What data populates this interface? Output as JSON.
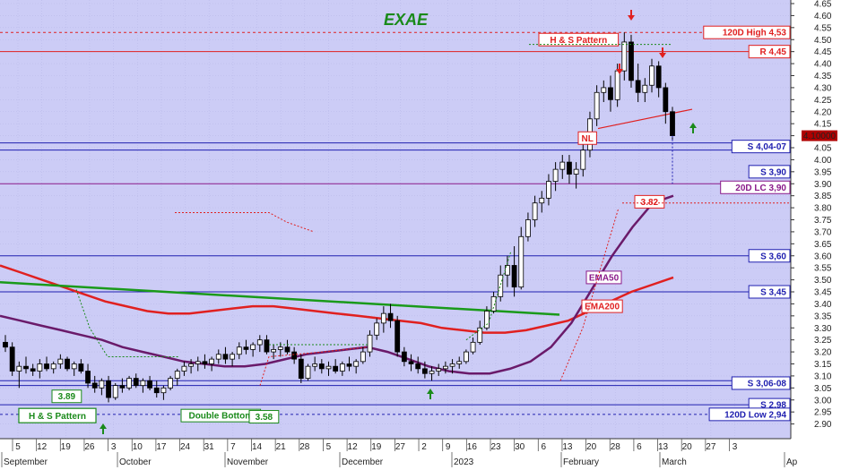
{
  "chart_data": {
    "type": "candlestick",
    "title": "EXAE",
    "ylim": [
      2.85,
      4.65
    ],
    "yticks": [
      2.9,
      2.95,
      3.0,
      3.05,
      3.1,
      3.15,
      3.2,
      3.25,
      3.3,
      3.35,
      3.4,
      3.45,
      3.5,
      3.55,
      3.6,
      3.65,
      3.7,
      3.75,
      3.8,
      3.85,
      3.9,
      3.95,
      4.0,
      4.05,
      4.1,
      4.15,
      4.2,
      4.25,
      4.3,
      4.35,
      4.4,
      4.45,
      4.5,
      4.55,
      4.6,
      4.65
    ],
    "ytick_labels": [
      "2.90",
      "2.95",
      "3.00",
      "3.05",
      "3.10",
      "3.15",
      "3.20",
      "3.25",
      "3.30",
      "3.35",
      "3.40",
      "3.45",
      "3.50",
      "3.55",
      "3.60",
      "3.65",
      "3.70",
      "3.75",
      "3.80",
      "3.85",
      "3.90",
      "3.95",
      "4.00",
      "4.05",
      "4.10",
      "4.15",
      "4.20",
      "4.25",
      "4.30",
      "4.35",
      "4.40",
      "4.45",
      "4.50",
      "4.55",
      "4.60",
      "4.65"
    ],
    "x_ticks": [
      "5",
      "12",
      "19",
      "26",
      "3",
      "10",
      "17",
      "24",
      "31",
      "7",
      "14",
      "21",
      "28",
      "5",
      "12",
      "19",
      "27",
      "2",
      "9",
      "16",
      "23",
      "30",
      "6",
      "13",
      "20",
      "28",
      "6",
      "13",
      "20",
      "27",
      "3"
    ],
    "months": [
      "September",
      "October",
      "November",
      "December",
      "2023",
      "February",
      "March",
      "Ap"
    ],
    "last_price_label": "4.10000",
    "levels": [
      {
        "label": "120D High 4,53",
        "value": 4.53,
        "color": "#e02020",
        "style": "dashed"
      },
      {
        "label": "R 4,45",
        "value": 4.45,
        "color": "#e02020",
        "style": "solid"
      },
      {
        "label": "S 4,04-07",
        "value": 4.07,
        "value2": 4.04,
        "color": "#2020b0",
        "style": "solid"
      },
      {
        "label": "S 3,90",
        "value": 3.9,
        "color": "#2020b0",
        "style": "none"
      },
      {
        "label": "20D LC 3,90",
        "value": 3.9,
        "color": "#8a1a8a",
        "style": "solid"
      },
      {
        "label": "S 3,60",
        "value": 3.6,
        "color": "#2020b0",
        "style": "solid"
      },
      {
        "label": "S 3,45",
        "value": 3.45,
        "color": "#2020b0",
        "style": "solid"
      },
      {
        "label": "S 3,06-08",
        "value": 3.08,
        "value2": 3.06,
        "color": "#2020b0",
        "style": "solid"
      },
      {
        "label": "S 2,98",
        "value": 2.98,
        "color": "#2020b0",
        "style": "solid"
      },
      {
        "label": "120D Low 2,94",
        "value": 2.94,
        "color": "#2020b0",
        "style": "dashed"
      }
    ],
    "annotations": [
      {
        "label": "H & S Pattern",
        "color": "#e02020"
      },
      {
        "label": "NL",
        "color": "#e02020"
      },
      {
        "label": "EMA50",
        "color": "#8a1a8a"
      },
      {
        "label": "EMA200",
        "color": "#e02020"
      },
      {
        "label": "3.82",
        "color": "#e02020"
      },
      {
        "label": "3.89",
        "color": "#1a8a1a"
      },
      {
        "label": "H & S Pattern",
        "color": "#1a8a1a"
      },
      {
        "label": "Double Bottom",
        "color": "#1a8a1a"
      },
      {
        "label": "3.58",
        "color": "#1a8a1a"
      }
    ],
    "series": [
      {
        "name": "EMA50",
        "color": "#6a1a6a"
      },
      {
        "name": "EMA200",
        "color": "#e02020"
      },
      {
        "name": "Trend",
        "color": "#1a9a1a"
      }
    ],
    "candles": [
      [
        3.24,
        3.27,
        3.2,
        3.22
      ],
      [
        3.22,
        3.24,
        3.1,
        3.12
      ],
      [
        3.12,
        3.16,
        3.05,
        3.14
      ],
      [
        3.14,
        3.18,
        3.11,
        3.13
      ],
      [
        3.13,
        3.15,
        3.1,
        3.12
      ],
      [
        3.12,
        3.17,
        3.09,
        3.15
      ],
      [
        3.15,
        3.18,
        3.12,
        3.13
      ],
      [
        3.13,
        3.16,
        3.11,
        3.15
      ],
      [
        3.15,
        3.19,
        3.13,
        3.17
      ],
      [
        3.17,
        3.18,
        3.12,
        3.13
      ],
      [
        3.13,
        3.16,
        3.1,
        3.15
      ],
      [
        3.15,
        3.17,
        3.11,
        3.12
      ],
      [
        3.12,
        3.15,
        3.05,
        3.07
      ],
      [
        3.07,
        3.1,
        3.03,
        3.05
      ],
      [
        3.05,
        3.09,
        3.02,
        3.08
      ],
      [
        3.08,
        3.1,
        2.99,
        3.01
      ],
      [
        3.01,
        3.07,
        3.0,
        3.06
      ],
      [
        3.06,
        3.09,
        3.03,
        3.05
      ],
      [
        3.05,
        3.1,
        3.04,
        3.09
      ],
      [
        3.09,
        3.11,
        3.05,
        3.06
      ],
      [
        3.06,
        3.09,
        3.03,
        3.08
      ],
      [
        3.08,
        3.1,
        3.04,
        3.05
      ],
      [
        3.05,
        3.08,
        3.01,
        3.03
      ],
      [
        3.03,
        3.06,
        3.0,
        3.05
      ],
      [
        3.05,
        3.1,
        3.04,
        3.09
      ],
      [
        3.09,
        3.13,
        3.06,
        3.12
      ],
      [
        3.12,
        3.16,
        3.1,
        3.14
      ],
      [
        3.14,
        3.17,
        3.11,
        3.15
      ],
      [
        3.15,
        3.18,
        3.12,
        3.16
      ],
      [
        3.16,
        3.19,
        3.13,
        3.15
      ],
      [
        3.15,
        3.18,
        3.12,
        3.17
      ],
      [
        3.17,
        3.21,
        3.15,
        3.19
      ],
      [
        3.19,
        3.22,
        3.15,
        3.17
      ],
      [
        3.17,
        3.2,
        3.14,
        3.19
      ],
      [
        3.19,
        3.24,
        3.17,
        3.22
      ],
      [
        3.22,
        3.25,
        3.19,
        3.21
      ],
      [
        3.21,
        3.24,
        3.18,
        3.23
      ],
      [
        3.23,
        3.27,
        3.2,
        3.25
      ],
      [
        3.25,
        3.27,
        3.19,
        3.2
      ],
      [
        3.2,
        3.23,
        3.17,
        3.21
      ],
      [
        3.21,
        3.24,
        3.18,
        3.22
      ],
      [
        3.22,
        3.25,
        3.19,
        3.2
      ],
      [
        3.2,
        3.22,
        3.15,
        3.17
      ],
      [
        3.17,
        3.19,
        3.07,
        3.09
      ],
      [
        3.09,
        3.15,
        3.08,
        3.14
      ],
      [
        3.14,
        3.18,
        3.12,
        3.15
      ],
      [
        3.15,
        3.17,
        3.11,
        3.13
      ],
      [
        3.13,
        3.16,
        3.1,
        3.14
      ],
      [
        3.14,
        3.17,
        3.11,
        3.12
      ],
      [
        3.12,
        3.16,
        3.1,
        3.15
      ],
      [
        3.15,
        3.18,
        3.12,
        3.14
      ],
      [
        3.14,
        3.17,
        3.11,
        3.16
      ],
      [
        3.16,
        3.22,
        3.15,
        3.2
      ],
      [
        3.2,
        3.29,
        3.18,
        3.27
      ],
      [
        3.27,
        3.34,
        3.25,
        3.32
      ],
      [
        3.32,
        3.39,
        3.28,
        3.36
      ],
      [
        3.36,
        3.4,
        3.3,
        3.33
      ],
      [
        3.33,
        3.35,
        3.18,
        3.2
      ],
      [
        3.2,
        3.22,
        3.14,
        3.16
      ],
      [
        3.16,
        3.19,
        3.12,
        3.15
      ],
      [
        3.15,
        3.18,
        3.11,
        3.13
      ],
      [
        3.13,
        3.16,
        3.09,
        3.11
      ],
      [
        3.11,
        3.14,
        3.08,
        3.12
      ],
      [
        3.12,
        3.15,
        3.1,
        3.13
      ],
      [
        3.13,
        3.16,
        3.11,
        3.14
      ],
      [
        3.14,
        3.17,
        3.11,
        3.15
      ],
      [
        3.15,
        3.18,
        3.13,
        3.16
      ],
      [
        3.16,
        3.21,
        3.15,
        3.2
      ],
      [
        3.2,
        3.26,
        3.19,
        3.24
      ],
      [
        3.24,
        3.33,
        3.23,
        3.3
      ],
      [
        3.3,
        3.39,
        3.29,
        3.37
      ],
      [
        3.37,
        3.45,
        3.36,
        3.43
      ],
      [
        3.43,
        3.56,
        3.41,
        3.52
      ],
      [
        3.52,
        3.6,
        3.47,
        3.56
      ],
      [
        3.56,
        3.64,
        3.43,
        3.47
      ],
      [
        3.47,
        3.72,
        3.46,
        3.68
      ],
      [
        3.68,
        3.78,
        3.66,
        3.75
      ],
      [
        3.75,
        3.85,
        3.72,
        3.82
      ],
      [
        3.82,
        3.87,
        3.78,
        3.84
      ],
      [
        3.84,
        3.94,
        3.81,
        3.91
      ],
      [
        3.91,
        3.99,
        3.87,
        3.96
      ],
      [
        3.96,
        4.02,
        3.92,
        3.99
      ],
      [
        3.99,
        4.02,
        3.9,
        3.94
      ],
      [
        3.94,
        3.99,
        3.88,
        3.96
      ],
      [
        3.96,
        4.08,
        3.93,
        4.04
      ],
      [
        4.04,
        4.2,
        4.01,
        4.17
      ],
      [
        4.17,
        4.31,
        4.14,
        4.28
      ],
      [
        4.28,
        4.33,
        4.24,
        4.3
      ],
      [
        4.3,
        4.35,
        4.2,
        4.25
      ],
      [
        4.25,
        4.4,
        4.22,
        4.37
      ],
      [
        4.37,
        4.53,
        4.33,
        4.49
      ],
      [
        4.49,
        4.52,
        4.3,
        4.33
      ],
      [
        4.33,
        4.4,
        4.24,
        4.28
      ],
      [
        4.28,
        4.34,
        4.24,
        4.31
      ],
      [
        4.31,
        4.42,
        4.28,
        4.39
      ],
      [
        4.39,
        4.41,
        4.26,
        4.3
      ],
      [
        4.3,
        4.32,
        4.15,
        4.2
      ],
      [
        4.2,
        4.22,
        4.08,
        4.1
      ]
    ],
    "ema50": [
      3.35,
      3.33,
      3.31,
      3.29,
      3.27,
      3.25,
      3.22,
      3.2,
      3.18,
      3.16,
      3.15,
      3.14,
      3.14,
      3.15,
      3.17,
      3.19,
      3.2,
      3.21,
      3.22,
      3.2,
      3.17,
      3.14,
      3.12,
      3.11,
      3.11,
      3.13,
      3.16,
      3.22,
      3.32,
      3.46,
      3.6,
      3.72,
      3.82,
      3.85
    ],
    "ema200": [
      3.56,
      3.53,
      3.5,
      3.47,
      3.44,
      3.41,
      3.39,
      3.37,
      3.36,
      3.36,
      3.37,
      3.38,
      3.39,
      3.39,
      3.38,
      3.37,
      3.36,
      3.35,
      3.34,
      3.33,
      3.32,
      3.3,
      3.29,
      3.28,
      3.28,
      3.29,
      3.31,
      3.33,
      3.37,
      3.41,
      3.45,
      3.48,
      3.51
    ]
  }
}
